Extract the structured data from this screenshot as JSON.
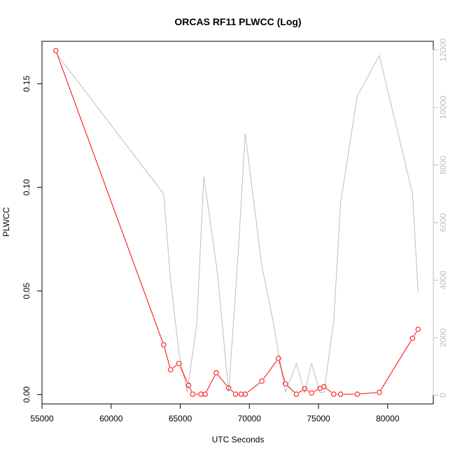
{
  "chart_data": {
    "type": "line",
    "title": "ORCAS RF11 PLWCC (Log)",
    "xlabel": "UTC Seconds",
    "ylabel": "PLWCC",
    "xlim": [
      55000,
      83300
    ],
    "ylim": [
      -0.0045,
      0.1705
    ],
    "ylim_right": [
      -300,
      12300
    ],
    "x_ticks": [
      "55000",
      "60000",
      "65000",
      "70000",
      "75000",
      "80000"
    ],
    "y_ticks": [
      "0.00",
      "0.05",
      "0.10",
      "0.15"
    ],
    "y_ticks_right": [
      "0",
      "2000",
      "4000",
      "6000",
      "8000",
      "10000",
      "12000"
    ],
    "grid": false,
    "series": [
      {
        "axis": "left",
        "color": "#ff0000",
        "marker": "circle",
        "points": [
          [
            56000,
            0.166
          ],
          [
            63800,
            0.024
          ],
          [
            64300,
            0.012
          ],
          [
            64900,
            0.015
          ],
          [
            65600,
            0.0045
          ],
          [
            65900,
            0.0002
          ],
          [
            66500,
            0.0002
          ],
          [
            66800,
            0.0002
          ],
          [
            67600,
            0.0105
          ],
          [
            68500,
            0.0032
          ],
          [
            69000,
            0.0002
          ],
          [
            69400,
            0.0002
          ],
          [
            69700,
            0.0002
          ],
          [
            70900,
            0.0065
          ],
          [
            72100,
            0.0175
          ],
          [
            72600,
            0.0052
          ],
          [
            73400,
            0.0002
          ],
          [
            74000,
            0.0028
          ],
          [
            74500,
            0.0008
          ],
          [
            75100,
            0.003
          ],
          [
            75400,
            0.0038
          ],
          [
            76100,
            0.0002
          ],
          [
            76600,
            0.0002
          ],
          [
            77800,
            0.0002
          ],
          [
            79400,
            0.0011
          ],
          [
            81800,
            0.0272
          ],
          [
            82200,
            0.0315
          ]
        ]
      },
      {
        "axis": "right",
        "color": "#bebebe",
        "marker": "none",
        "points": [
          [
            56000,
            11900
          ],
          [
            63800,
            7000
          ],
          [
            64300,
            4000
          ],
          [
            64900,
            1500
          ],
          [
            65500,
            100
          ],
          [
            66200,
            2500
          ],
          [
            66700,
            7600
          ],
          [
            67300,
            5600
          ],
          [
            67700,
            4200
          ],
          [
            68500,
            100
          ],
          [
            69200,
            5000
          ],
          [
            69700,
            9100
          ],
          [
            70300,
            6800
          ],
          [
            70900,
            4500
          ],
          [
            71700,
            2600
          ],
          [
            72600,
            100
          ],
          [
            73400,
            1100
          ],
          [
            74000,
            100
          ],
          [
            74500,
            1100
          ],
          [
            75100,
            100
          ],
          [
            75400,
            100
          ],
          [
            76100,
            2600
          ],
          [
            76600,
            6700
          ],
          [
            77800,
            10400
          ],
          [
            79400,
            11800
          ],
          [
            81800,
            7000
          ],
          [
            82200,
            3600
          ]
        ]
      }
    ]
  }
}
